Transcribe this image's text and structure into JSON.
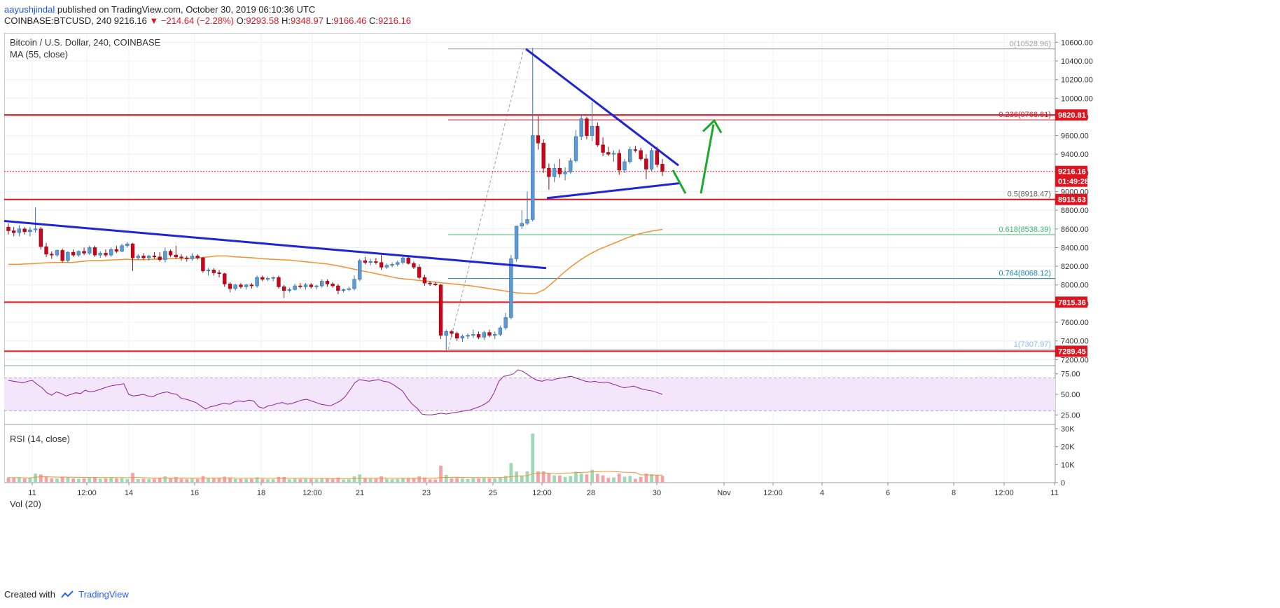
{
  "header": {
    "author": "aayushjindal",
    "published_text": "published on TradingView.com, October 30, 2019 06:10:36 UTC",
    "symbol": "COINBASE:BTCUSD, 240",
    "last_price": "9216.16",
    "change": "▼ −214.64 (−2.28%)",
    "o_label": "O:",
    "o_value": "9293.58",
    "h_label": "H:",
    "h_value": "9348.97",
    "l_label": "L:",
    "l_value": "9166.46",
    "c_label": "C:",
    "c_value": "9216.16"
  },
  "legends": {
    "title": "Bitcoin / U.S. Dollar, 240, COINBASE",
    "ma": "MA (55, close)",
    "rsi": "RSI (14, close)",
    "vol": "Vol (20)"
  },
  "footer": {
    "created_with": "Created with",
    "brand": "TradingView"
  },
  "colors": {
    "up": "#5b9bd5",
    "down": "#d0021b",
    "support_line": "#e0141e",
    "trendline": "#1f24d8",
    "ma": "#f4902f",
    "rsi": "#8e1f9e",
    "arrow": "#1aaa2a"
  },
  "chart_data": {
    "type": "candlestick",
    "price_axis": {
      "ticks": [
        "10600.00",
        "10400.00",
        "10200.00",
        "10000.00",
        "9800.00",
        "9600.00",
        "9400.00",
        "9200.00",
        "9000.00",
        "8800.00",
        "8600.00",
        "8400.00",
        "8200.00",
        "8000.00",
        "7800.00",
        "7600.00",
        "7400.00",
        "7200.00"
      ],
      "range": [
        7150,
        10700
      ]
    },
    "time_axis": {
      "ticks": [
        "11",
        "12:00",
        "14",
        "16",
        "18",
        "12:00",
        "21",
        "23",
        "25",
        "12:00",
        "28",
        "30",
        "Nov",
        "12:00",
        "4",
        "6",
        "8",
        "12:00",
        "11"
      ]
    },
    "horizontal_levels": [
      {
        "label": "9820.81",
        "value": 9820.81
      },
      {
        "label": "8915.63",
        "value": 8915.63
      },
      {
        "label": "7815.36",
        "value": 7815.36
      },
      {
        "label": "7289.45",
        "value": 7289.45
      }
    ],
    "current_price": {
      "label": "9216.16",
      "value": 9216.16,
      "countdown": "01:49:28"
    },
    "fibonacci": [
      {
        "label": "0(10528.96)",
        "value": 10528.96,
        "color": "#9e9e9e"
      },
      {
        "label": "0.236(9768.81)",
        "value": 9768.81,
        "color": "#e0141e"
      },
      {
        "label": "0.5(8918.47)",
        "value": 8918.47,
        "color": "#5b5b5b"
      },
      {
        "label": "0.618(8538.39)",
        "value": 8538.39,
        "color": "#35b86d"
      },
      {
        "label": "0.764(8068.12)",
        "value": 8068.12,
        "color": "#1e88b8"
      },
      {
        "label": "1(7307.97)",
        "value": 7307.97,
        "color": "#8fb9e8"
      }
    ],
    "candles": [
      {
        "o": 8620,
        "h": 8660,
        "l": 8540,
        "c": 8580
      },
      {
        "o": 8580,
        "h": 8620,
        "l": 8520,
        "c": 8560
      },
      {
        "o": 8560,
        "h": 8640,
        "l": 8520,
        "c": 8600
      },
      {
        "o": 8600,
        "h": 8620,
        "l": 8540,
        "c": 8570
      },
      {
        "o": 8570,
        "h": 8620,
        "l": 8520,
        "c": 8590
      },
      {
        "o": 8590,
        "h": 8830,
        "l": 8560,
        "c": 8600
      },
      {
        "o": 8600,
        "h": 8620,
        "l": 8380,
        "c": 8410
      },
      {
        "o": 8410,
        "h": 8450,
        "l": 8300,
        "c": 8330
      },
      {
        "o": 8330,
        "h": 8360,
        "l": 8280,
        "c": 8320
      },
      {
        "o": 8320,
        "h": 8380,
        "l": 8300,
        "c": 8370
      },
      {
        "o": 8370,
        "h": 8390,
        "l": 8240,
        "c": 8260
      },
      {
        "o": 8260,
        "h": 8360,
        "l": 8240,
        "c": 8350
      },
      {
        "o": 8350,
        "h": 8380,
        "l": 8300,
        "c": 8320
      },
      {
        "o": 8320,
        "h": 8370,
        "l": 8300,
        "c": 8360
      },
      {
        "o": 8360,
        "h": 8400,
        "l": 8320,
        "c": 8340
      },
      {
        "o": 8340,
        "h": 8420,
        "l": 8320,
        "c": 8400
      },
      {
        "o": 8400,
        "h": 8420,
        "l": 8300,
        "c": 8320
      },
      {
        "o": 8320,
        "h": 8360,
        "l": 8290,
        "c": 8340
      },
      {
        "o": 8340,
        "h": 8380,
        "l": 8300,
        "c": 8320
      },
      {
        "o": 8320,
        "h": 8400,
        "l": 8300,
        "c": 8380
      },
      {
        "o": 8380,
        "h": 8420,
        "l": 8340,
        "c": 8360
      },
      {
        "o": 8360,
        "h": 8440,
        "l": 8350,
        "c": 8420
      },
      {
        "o": 8420,
        "h": 8460,
        "l": 8400,
        "c": 8440
      },
      {
        "o": 8440,
        "h": 8450,
        "l": 8150,
        "c": 8290
      },
      {
        "o": 8290,
        "h": 8330,
        "l": 8270,
        "c": 8310
      },
      {
        "o": 8310,
        "h": 8340,
        "l": 8270,
        "c": 8290
      },
      {
        "o": 8290,
        "h": 8320,
        "l": 8260,
        "c": 8310
      },
      {
        "o": 8310,
        "h": 8350,
        "l": 8280,
        "c": 8300
      },
      {
        "o": 8300,
        "h": 8350,
        "l": 8250,
        "c": 8270
      },
      {
        "o": 8270,
        "h": 8400,
        "l": 8240,
        "c": 8360
      },
      {
        "o": 8360,
        "h": 8380,
        "l": 8300,
        "c": 8320
      },
      {
        "o": 8320,
        "h": 8420,
        "l": 8280,
        "c": 8300
      },
      {
        "o": 8300,
        "h": 8330,
        "l": 8260,
        "c": 8290
      },
      {
        "o": 8290,
        "h": 8310,
        "l": 8250,
        "c": 8280
      },
      {
        "o": 8280,
        "h": 8340,
        "l": 8260,
        "c": 8310
      },
      {
        "o": 8310,
        "h": 8330,
        "l": 8270,
        "c": 8290
      },
      {
        "o": 8290,
        "h": 8300,
        "l": 8130,
        "c": 8150
      },
      {
        "o": 8150,
        "h": 8180,
        "l": 8100,
        "c": 8160
      },
      {
        "o": 8160,
        "h": 8180,
        "l": 8100,
        "c": 8130
      },
      {
        "o": 8130,
        "h": 8160,
        "l": 8080,
        "c": 8120
      },
      {
        "o": 8120,
        "h": 8130,
        "l": 7980,
        "c": 8010
      },
      {
        "o": 8010,
        "h": 8030,
        "l": 7920,
        "c": 7960
      },
      {
        "o": 7960,
        "h": 8010,
        "l": 7940,
        "c": 8000
      },
      {
        "o": 8000,
        "h": 8020,
        "l": 7960,
        "c": 7980
      },
      {
        "o": 7980,
        "h": 8010,
        "l": 7950,
        "c": 8000
      },
      {
        "o": 8000,
        "h": 8020,
        "l": 7960,
        "c": 7990
      },
      {
        "o": 7990,
        "h": 8100,
        "l": 7970,
        "c": 8080
      },
      {
        "o": 8080,
        "h": 8100,
        "l": 8040,
        "c": 8060
      },
      {
        "o": 8060,
        "h": 8090,
        "l": 8040,
        "c": 8070
      },
      {
        "o": 8070,
        "h": 8090,
        "l": 8040,
        "c": 8080
      },
      {
        "o": 8080,
        "h": 8100,
        "l": 7960,
        "c": 7980
      },
      {
        "o": 7980,
        "h": 8000,
        "l": 7860,
        "c": 7940
      },
      {
        "o": 7940,
        "h": 7970,
        "l": 7920,
        "c": 7950
      },
      {
        "o": 7950,
        "h": 8010,
        "l": 7940,
        "c": 7990
      },
      {
        "o": 7990,
        "h": 8020,
        "l": 7960,
        "c": 7980
      },
      {
        "o": 7980,
        "h": 8020,
        "l": 7950,
        "c": 8000
      },
      {
        "o": 8000,
        "h": 8020,
        "l": 7960,
        "c": 7980
      },
      {
        "o": 7980,
        "h": 8000,
        "l": 7950,
        "c": 7990
      },
      {
        "o": 7990,
        "h": 8060,
        "l": 7970,
        "c": 8040
      },
      {
        "o": 8040,
        "h": 8060,
        "l": 7980,
        "c": 8010
      },
      {
        "o": 8010,
        "h": 8030,
        "l": 7970,
        "c": 7990
      },
      {
        "o": 7990,
        "h": 8010,
        "l": 7900,
        "c": 7940
      },
      {
        "o": 7940,
        "h": 7960,
        "l": 7920,
        "c": 7950
      },
      {
        "o": 7950,
        "h": 7980,
        "l": 7930,
        "c": 7960
      },
      {
        "o": 7960,
        "h": 8100,
        "l": 7940,
        "c": 8060
      },
      {
        "o": 8060,
        "h": 8280,
        "l": 8040,
        "c": 8260
      },
      {
        "o": 8260,
        "h": 8300,
        "l": 8220,
        "c": 8240
      },
      {
        "o": 8240,
        "h": 8280,
        "l": 8210,
        "c": 8250
      },
      {
        "o": 8250,
        "h": 8290,
        "l": 8220,
        "c": 8240
      },
      {
        "o": 8240,
        "h": 8320,
        "l": 8160,
        "c": 8190
      },
      {
        "o": 8190,
        "h": 8230,
        "l": 8170,
        "c": 8210
      },
      {
        "o": 8210,
        "h": 8240,
        "l": 8190,
        "c": 8220
      },
      {
        "o": 8220,
        "h": 8260,
        "l": 8200,
        "c": 8240
      },
      {
        "o": 8240,
        "h": 8310,
        "l": 8220,
        "c": 8290
      },
      {
        "o": 8290,
        "h": 8300,
        "l": 8220,
        "c": 8230
      },
      {
        "o": 8230,
        "h": 8250,
        "l": 8170,
        "c": 8190
      },
      {
        "o": 8190,
        "h": 8220,
        "l": 8060,
        "c": 8080
      },
      {
        "o": 8080,
        "h": 8110,
        "l": 7990,
        "c": 8020
      },
      {
        "o": 8020,
        "h": 8040,
        "l": 7990,
        "c": 8010
      },
      {
        "o": 8010,
        "h": 8030,
        "l": 7990,
        "c": 8000
      },
      {
        "o": 8000,
        "h": 8010,
        "l": 7420,
        "c": 7460
      },
      {
        "o": 7460,
        "h": 7520,
        "l": 7300,
        "c": 7500
      },
      {
        "o": 7500,
        "h": 7520,
        "l": 7440,
        "c": 7480
      },
      {
        "o": 7480,
        "h": 7500,
        "l": 7400,
        "c": 7430
      },
      {
        "o": 7430,
        "h": 7470,
        "l": 7390,
        "c": 7450
      },
      {
        "o": 7450,
        "h": 7480,
        "l": 7420,
        "c": 7460
      },
      {
        "o": 7460,
        "h": 7520,
        "l": 7430,
        "c": 7470
      },
      {
        "o": 7470,
        "h": 7500,
        "l": 7420,
        "c": 7440
      },
      {
        "o": 7440,
        "h": 7510,
        "l": 7410,
        "c": 7490
      },
      {
        "o": 7490,
        "h": 7520,
        "l": 7440,
        "c": 7460
      },
      {
        "o": 7460,
        "h": 7500,
        "l": 7420,
        "c": 7470
      },
      {
        "o": 7470,
        "h": 7560,
        "l": 7450,
        "c": 7540
      },
      {
        "o": 7540,
        "h": 7700,
        "l": 7520,
        "c": 7650
      },
      {
        "o": 7650,
        "h": 8320,
        "l": 7630,
        "c": 8280
      },
      {
        "o": 8280,
        "h": 8600,
        "l": 8250,
        "c": 8630
      },
      {
        "o": 8630,
        "h": 8800,
        "l": 8600,
        "c": 8660
      },
      {
        "o": 8660,
        "h": 9000,
        "l": 8640,
        "c": 8700
      },
      {
        "o": 8700,
        "h": 10540,
        "l": 8680,
        "c": 9600
      },
      {
        "o": 9600,
        "h": 9810,
        "l": 9450,
        "c": 9520
      },
      {
        "o": 9520,
        "h": 9560,
        "l": 9200,
        "c": 9250
      },
      {
        "o": 9250,
        "h": 9300,
        "l": 9020,
        "c": 9160
      },
      {
        "o": 9160,
        "h": 9300,
        "l": 9100,
        "c": 9250
      },
      {
        "o": 9250,
        "h": 9350,
        "l": 9150,
        "c": 9190
      },
      {
        "o": 9190,
        "h": 9260,
        "l": 9120,
        "c": 9210
      },
      {
        "o": 9210,
        "h": 9360,
        "l": 9190,
        "c": 9330
      },
      {
        "o": 9330,
        "h": 9660,
        "l": 9310,
        "c": 9590
      },
      {
        "o": 9590,
        "h": 9830,
        "l": 9550,
        "c": 9780
      },
      {
        "o": 9780,
        "h": 9800,
        "l": 9560,
        "c": 9600
      },
      {
        "o": 9600,
        "h": 9960,
        "l": 9540,
        "c": 9700
      },
      {
        "o": 9700,
        "h": 9740,
        "l": 9480,
        "c": 9500
      },
      {
        "o": 9500,
        "h": 9580,
        "l": 9380,
        "c": 9420
      },
      {
        "o": 9420,
        "h": 9480,
        "l": 9380,
        "c": 9400
      },
      {
        "o": 9400,
        "h": 9440,
        "l": 9320,
        "c": 9410
      },
      {
        "o": 9410,
        "h": 9450,
        "l": 9180,
        "c": 9230
      },
      {
        "o": 9230,
        "h": 9350,
        "l": 9200,
        "c": 9320
      },
      {
        "o": 9320,
        "h": 9480,
        "l": 9300,
        "c": 9450
      },
      {
        "o": 9450,
        "h": 9490,
        "l": 9420,
        "c": 9440
      },
      {
        "o": 9440,
        "h": 9470,
        "l": 9330,
        "c": 9350
      },
      {
        "o": 9350,
        "h": 9400,
        "l": 9130,
        "c": 9240
      },
      {
        "o": 9240,
        "h": 9470,
        "l": 9220,
        "c": 9440
      },
      {
        "o": 9440,
        "h": 9480,
        "l": 9260,
        "c": 9290
      },
      {
        "o": 9293.58,
        "h": 9348.97,
        "l": 9166.46,
        "c": 9216.16
      }
    ],
    "ma_55": [
      8220,
      8220,
      8225,
      8230,
      8235,
      8240,
      8240,
      8240,
      8250,
      8260,
      8260,
      8265,
      8270,
      8275,
      8270,
      8270,
      8275,
      8280,
      8280,
      8285,
      8285,
      8290,
      8300,
      8310,
      8310,
      8300,
      8295,
      8290,
      8280,
      8275,
      8270,
      8265,
      8255,
      8245,
      8235,
      8225,
      8210,
      8190,
      8170,
      8150,
      8130,
      8110,
      8090,
      8070,
      8060,
      8050,
      8040,
      8030,
      8020,
      8010,
      8000,
      7990,
      7975,
      7960,
      7945,
      7930,
      7915,
      7910,
      7905,
      7950,
      8030,
      8120,
      8200,
      8270,
      8330,
      8380,
      8420,
      8460,
      8500,
      8535,
      8560,
      8580,
      8595
    ],
    "rsi": {
      "ticks": [
        "75.00",
        "50.00",
        "25.00"
      ],
      "range": [
        15,
        85
      ],
      "bands": [
        70,
        30
      ],
      "values": [
        67,
        66,
        65,
        64,
        66,
        67,
        62,
        58,
        52,
        49,
        53,
        51,
        48,
        50,
        52,
        51,
        55,
        53,
        54,
        56,
        58,
        60,
        61,
        62,
        63,
        50,
        48,
        49,
        50,
        48,
        47,
        50,
        52,
        53,
        51,
        50,
        45,
        44,
        42,
        40,
        36,
        32,
        35,
        36,
        38,
        39,
        38,
        41,
        42,
        41,
        43,
        42,
        35,
        33,
        36,
        37,
        39,
        40,
        38,
        39,
        41,
        43,
        44,
        42,
        40,
        38,
        37,
        36,
        39,
        42,
        47,
        55,
        64,
        68,
        67,
        66,
        67,
        68,
        66,
        65,
        62,
        58,
        54,
        45,
        38,
        33,
        26,
        25,
        25,
        26,
        27,
        26,
        27,
        28,
        29,
        30,
        31,
        33,
        35,
        38,
        42,
        52,
        66,
        72,
        73,
        75,
        80,
        78,
        74,
        70,
        67,
        66,
        68,
        67,
        69,
        70,
        71,
        72,
        70,
        68,
        66,
        65,
        66,
        64,
        65,
        64,
        62,
        60,
        58,
        59,
        60,
        58,
        56,
        55,
        54,
        52,
        50
      ]
    },
    "volume": {
      "ticks": [
        "30K",
        "20K",
        "10K",
        "0"
      ],
      "range": [
        0,
        30000
      ]
    }
  }
}
